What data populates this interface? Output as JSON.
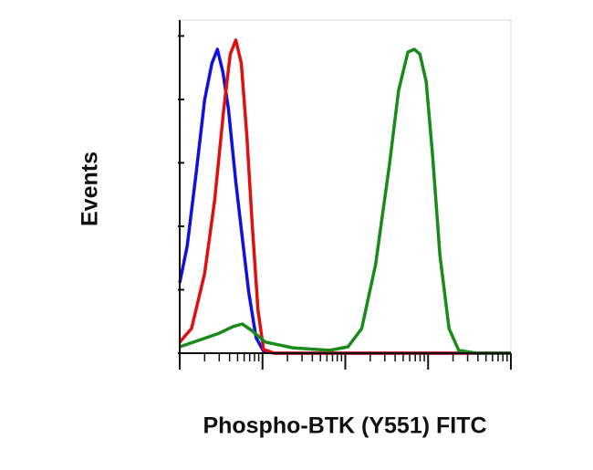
{
  "chart_data": {
    "type": "line",
    "x_label": "Phospho-BTK (Y551) FITC",
    "y_label": "Events",
    "log_x": true,
    "xlim": [
      1,
      10000
    ],
    "xticks": [
      1,
      10,
      100,
      1000,
      10000
    ],
    "xminorticks": [
      2,
      3,
      4,
      5,
      6,
      7,
      8,
      9,
      20,
      30,
      40,
      50,
      60,
      70,
      80,
      90,
      200,
      300,
      400,
      500,
      600,
      700,
      800,
      900,
      2000,
      3000,
      4000,
      5000,
      6000,
      7000,
      8000,
      9000
    ],
    "ylim": [
      0,
      105
    ],
    "yticks": [
      0,
      20,
      40,
      60,
      80,
      100
    ],
    "series": [
      {
        "color": "#1010e0",
        "x": [
          1,
          1.23,
          1.58,
          2.0,
          2.45,
          2.85,
          3.33,
          3.88,
          4.76,
          5.69,
          6.81,
          8.36,
          10.3,
          13.9,
          23.2,
          10000
        ],
        "values": [
          22.2,
          33.8,
          56.8,
          79.9,
          91.4,
          95.8,
          88.5,
          77.0,
          53.9,
          36.6,
          19.3,
          4.9,
          0.6,
          0,
          0,
          0
        ]
      },
      {
        "color": "#e01010",
        "x": [
          1,
          1.39,
          2.0,
          2.64,
          3.41,
          4.08,
          4.76,
          5.55,
          6.47,
          7.55,
          8.82,
          10.3,
          13.9,
          10000
        ],
        "values": [
          3.5,
          7.8,
          25.1,
          48.2,
          77.0,
          94.3,
          98.7,
          91.4,
          68.4,
          39.5,
          13.6,
          1.2,
          0,
          0
        ]
      },
      {
        "color": "#1a8a1a",
        "x": [
          1,
          1.8,
          3.0,
          4.41,
          5.69,
          7.36,
          10.8,
          23.2,
          64.6,
          108,
          158,
          232,
          342,
          440,
          570,
          681,
          794,
          947,
          1130,
          1390,
          1790,
          2340,
          3860,
          10000
        ],
        "values": [
          2.0,
          4.3,
          6.3,
          8.4,
          9.2,
          7.2,
          3.5,
          1.7,
          0.9,
          2.0,
          7.8,
          28.0,
          59.7,
          82.8,
          94.9,
          95.8,
          94.3,
          85.7,
          62.6,
          30.9,
          7.8,
          0.9,
          0,
          0
        ]
      }
    ]
  }
}
